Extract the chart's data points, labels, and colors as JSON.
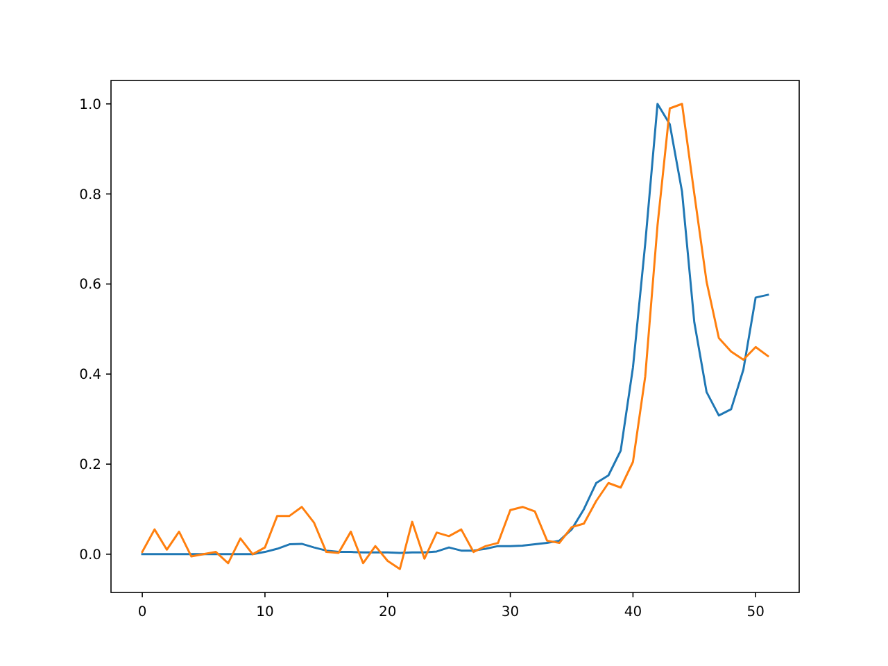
{
  "chart_data": {
    "type": "line",
    "x": [
      0,
      1,
      2,
      3,
      4,
      5,
      6,
      7,
      8,
      9,
      10,
      11,
      12,
      13,
      14,
      15,
      16,
      17,
      18,
      19,
      20,
      21,
      22,
      23,
      24,
      25,
      26,
      27,
      28,
      29,
      30,
      31,
      32,
      33,
      34,
      35,
      36,
      37,
      38,
      39,
      40,
      41,
      42,
      43,
      44,
      45,
      46,
      47,
      48,
      49,
      50,
      51
    ],
    "series": [
      {
        "color": "#1f77b4",
        "values": [
          0,
          0,
          0,
          0,
          0,
          0,
          0,
          0,
          0,
          0,
          0.005,
          0.012,
          0.022,
          0.023,
          0.015,
          0.008,
          0.005,
          0.005,
          0.004,
          0.004,
          0.004,
          0.003,
          0.004,
          0.004,
          0.006,
          0.015,
          0.008,
          0.008,
          0.012,
          0.018,
          0.018,
          0.019,
          0.022,
          0.025,
          0.03,
          0.055,
          0.1,
          0.158,
          0.175,
          0.23,
          0.415,
          0.69,
          1.0,
          0.955,
          0.805,
          0.515,
          0.36,
          0.308,
          0.322,
          0.41,
          0.57,
          0.576
        ]
      },
      {
        "color": "#ff7f0e",
        "values": [
          0.005,
          0.055,
          0.01,
          0.05,
          -0.005,
          0,
          0.005,
          -0.02,
          0.035,
          0,
          0.015,
          0.085,
          0.085,
          0.105,
          0.07,
          0.005,
          0.003,
          0.05,
          -0.02,
          0.018,
          -0.015,
          -0.033,
          0.072,
          -0.01,
          0.048,
          0.04,
          0.055,
          0.005,
          0.018,
          0.025,
          0.098,
          0.105,
          0.095,
          0.03,
          0.025,
          0.06,
          0.068,
          0.118,
          0.158,
          0.148,
          0.205,
          0.395,
          0.73,
          0.99,
          1.0,
          0.8,
          0.605,
          0.48,
          0.45,
          0.432,
          0.46,
          0.44
        ]
      }
    ],
    "xlim": [
      -2.55,
      53.55
    ],
    "ylim": [
      -0.085,
      1.052
    ],
    "xticks": [
      0,
      10,
      20,
      30,
      40,
      50
    ],
    "yticks": [
      {
        "value": 0,
        "label": "0.0"
      },
      {
        "value": 0.2,
        "label": "0.2"
      },
      {
        "value": 0.4,
        "label": "0.4"
      },
      {
        "value": 0.6,
        "label": "0.6"
      },
      {
        "value": 0.8,
        "label": "0.8"
      },
      {
        "value": 1,
        "label": "1.0"
      }
    ]
  }
}
